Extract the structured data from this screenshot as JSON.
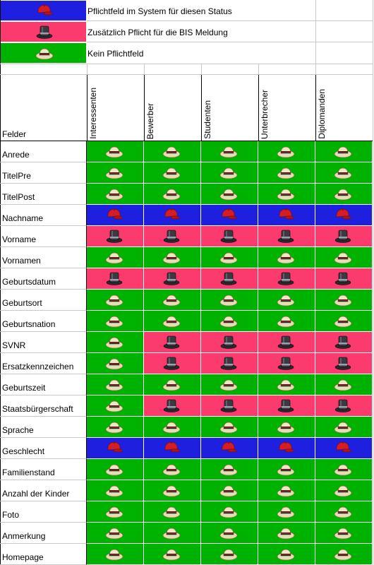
{
  "legend": [
    {
      "text": "Pflichtfeld im System für diesen Status",
      "status": "blue",
      "icon": "red-cap-icon"
    },
    {
      "text": "Zusätzlich Pflicht für die BIS Meldung",
      "status": "pink",
      "icon": "top-hat-icon"
    },
    {
      "text": "Kein Pflichtfeld",
      "status": "green",
      "icon": "straw-hat-icon"
    }
  ],
  "header": {
    "fields_label": "Felder",
    "columns": [
      "Interessenten",
      "Bewerber",
      "Studenten",
      "Unterbrecher",
      "Diplomanden"
    ]
  },
  "rows": [
    {
      "label": "Anrede",
      "values": [
        "green",
        "green",
        "green",
        "green",
        "green"
      ]
    },
    {
      "label": "TitelPre",
      "values": [
        "green",
        "green",
        "green",
        "green",
        "green"
      ]
    },
    {
      "label": "TitelPost",
      "values": [
        "green",
        "green",
        "green",
        "green",
        "green"
      ]
    },
    {
      "label": "Nachname",
      "values": [
        "blue",
        "blue",
        "blue",
        "blue",
        "blue"
      ]
    },
    {
      "label": "Vorname",
      "values": [
        "pink",
        "pink",
        "pink",
        "pink",
        "pink"
      ]
    },
    {
      "label": "Vornamen",
      "values": [
        "green",
        "green",
        "green",
        "green",
        "green"
      ]
    },
    {
      "label": "Geburtsdatum",
      "values": [
        "pink",
        "pink",
        "pink",
        "pink",
        "pink"
      ]
    },
    {
      "label": "Geburtsort",
      "values": [
        "green",
        "green",
        "green",
        "green",
        "green"
      ]
    },
    {
      "label": "Geburtsnation",
      "values": [
        "green",
        "green",
        "green",
        "green",
        "green"
      ]
    },
    {
      "label": "SVNR",
      "values": [
        "green",
        "pink",
        "pink",
        "pink",
        "pink"
      ]
    },
    {
      "label": "Ersatzkennzeichen",
      "values": [
        "green",
        "pink",
        "pink",
        "pink",
        "pink"
      ]
    },
    {
      "label": "Geburtszeit",
      "values": [
        "green",
        "green",
        "green",
        "green",
        "green"
      ]
    },
    {
      "label": "Staatsbürgerschaft",
      "values": [
        "green",
        "pink",
        "pink",
        "pink",
        "pink"
      ]
    },
    {
      "label": "Sprache",
      "values": [
        "green",
        "green",
        "green",
        "green",
        "green"
      ]
    },
    {
      "label": "Geschlecht",
      "values": [
        "blue",
        "blue",
        "blue",
        "blue",
        "blue"
      ]
    },
    {
      "label": "Familienstand",
      "values": [
        "green",
        "green",
        "green",
        "green",
        "green"
      ]
    },
    {
      "label": "Anzahl der Kinder",
      "values": [
        "green",
        "green",
        "green",
        "green",
        "green"
      ]
    },
    {
      "label": "Foto",
      "values": [
        "green",
        "green",
        "green",
        "green",
        "green"
      ]
    },
    {
      "label": "Anmerkung",
      "values": [
        "green",
        "green",
        "green",
        "green",
        "green"
      ]
    },
    {
      "label": "Homepage",
      "values": [
        "green",
        "green",
        "green",
        "green",
        "green"
      ]
    }
  ],
  "status_colors": {
    "green": "#00b200",
    "blue": "#1f1fe0",
    "pink": "#fb3b6e"
  },
  "status_icons": {
    "green": "straw-hat-icon",
    "blue": "red-cap-icon",
    "pink": "top-hat-icon"
  }
}
